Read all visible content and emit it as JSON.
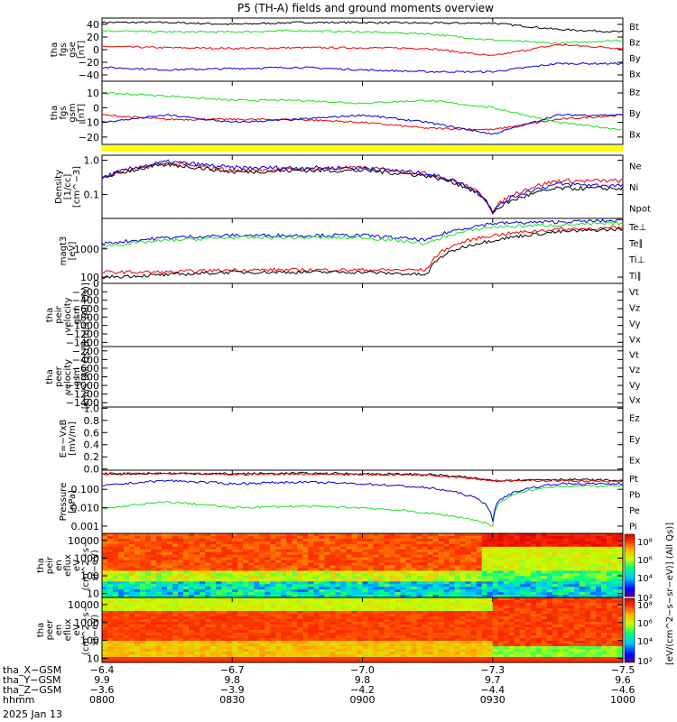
{
  "title": "P5 (TH-A) fields and ground moments overview",
  "colors": {
    "black": "#000000",
    "red": "#ee0000",
    "green": "#22dd22",
    "blue": "#0000dd",
    "yellow": "#ffff00"
  },
  "panels": [
    {
      "id": "fgs-gse",
      "ylabel": [
        "tha",
        "fgs",
        "gse",
        "[nT]"
      ],
      "ticks": [
        "40",
        "20",
        "0",
        "−20",
        "−40"
      ],
      "legend": [
        {
          "t": "Bt",
          "c": "black"
        },
        {
          "t": "Bz",
          "c": "red"
        },
        {
          "t": "By",
          "c": "green"
        },
        {
          "t": "Bx",
          "c": "blue"
        }
      ]
    },
    {
      "id": "fgs-gsm",
      "ylabel": [
        "tha",
        "fgs",
        "gsm",
        "[nT]"
      ],
      "ticks": [
        "10",
        "0",
        "−10",
        "−20"
      ],
      "legend": [
        {
          "t": "Bz",
          "c": "red"
        },
        {
          "t": "By",
          "c": "green"
        },
        {
          "t": "Bx",
          "c": "blue"
        }
      ]
    },
    {
      "id": "density",
      "ylabel": [
        "Density",
        "[1/cc]",
        "[cm^−3]"
      ],
      "ticks": [
        "1.0",
        "0.1"
      ],
      "legend": [
        {
          "t": "Ne",
          "c": "red"
        },
        {
          "t": "Ni",
          "c": "black"
        },
        {
          "t": "Npot",
          "c": "blue"
        }
      ]
    },
    {
      "id": "temp",
      "ylabel": [
        "magt3",
        "[eV]"
      ],
      "ticks": [
        "1000",
        "100"
      ],
      "legend": [
        {
          "t": "Te⊥",
          "c": "red"
        },
        {
          "t": "Te∥",
          "c": "black"
        },
        {
          "t": "Ti⊥",
          "c": "blue"
        },
        {
          "t": "Ti∥",
          "c": "green"
        }
      ]
    },
    {
      "id": "peir-vel",
      "ylabel": [
        "tha",
        "peir",
        "velocity",
        "gsm",
        "[km/s (All Qs)]"
      ],
      "ticks": [
        "0",
        "−200",
        "−400",
        "−600",
        "−800",
        "−1000",
        "−1200",
        "−1400"
      ],
      "legend": [
        {
          "t": "Vt",
          "c": "black"
        },
        {
          "t": "Vz",
          "c": "red"
        },
        {
          "t": "Vy",
          "c": "green"
        },
        {
          "t": "Vx",
          "c": "blue"
        }
      ]
    },
    {
      "id": "peer-vel",
      "ylabel": [
        "tha",
        "peer",
        "velocity",
        "gsm",
        "[km/s (All Qs)]"
      ],
      "ticks": [
        "−200",
        "−400",
        "−600",
        "−800",
        "−1000",
        "−1200",
        "−1400"
      ],
      "legend": [
        {
          "t": "Vt",
          "c": "black"
        },
        {
          "t": "Vz",
          "c": "red"
        },
        {
          "t": "Vy",
          "c": "green"
        },
        {
          "t": "Vx",
          "c": "blue"
        }
      ]
    },
    {
      "id": "efield",
      "ylabel": [
        "E=−VxB",
        "[mV/m]"
      ],
      "ticks": [
        "1.0",
        "0.8",
        "0.6",
        "0.4",
        "0.2",
        "0.0"
      ],
      "legend": [
        {
          "t": "Ez",
          "c": "red"
        },
        {
          "t": "Ey",
          "c": "green"
        },
        {
          "t": "Ex",
          "c": "blue"
        }
      ]
    },
    {
      "id": "pressure",
      "ylabel": [
        "Pressure",
        "[nPa]"
      ],
      "ticks": [
        "0.100",
        "0.010",
        "0.001"
      ],
      "legend": [
        {
          "t": "Pt",
          "c": "black"
        },
        {
          "t": "Pb",
          "c": "red"
        },
        {
          "t": "Pe",
          "c": "green"
        },
        {
          "t": "Pi",
          "c": "blue"
        }
      ]
    },
    {
      "id": "peir-spec",
      "ylabel": [
        "tha",
        "peir",
        "en",
        "eflux",
        "eV",
        "(cm^2−s−",
        "sr−eV)"
      ],
      "ticks": [
        "10000",
        "1000",
        "100",
        "10"
      ]
    },
    {
      "id": "peer-spec",
      "ylabel": [
        "tha",
        "peer",
        "en",
        "eflux",
        "eV",
        "(cm^2−s−",
        "sr−eV)"
      ],
      "ticks": [
        "10000",
        "1000",
        "100",
        "10"
      ]
    }
  ],
  "colorbar": {
    "ticks": [
      "10⁸",
      "10⁶",
      "10⁴",
      "10²"
    ],
    "label": "[eV/(cm^2−s−sr−eV)] (All Qs)]"
  },
  "xaxis": {
    "rows": [
      {
        "label": "tha_X−GSM",
        "values": [
          "−6.4",
          "−6.7",
          "−7.0",
          "−7.3",
          "−7.5"
        ]
      },
      {
        "label": "tha_Y−GSM",
        "values": [
          "9.9",
          "9.8",
          "9.8",
          "9.7",
          "9.6"
        ]
      },
      {
        "label": "tha_Z−GSM",
        "values": [
          "−3.6",
          "−3.9",
          "−4.2",
          "−4.4",
          "−4.6"
        ]
      },
      {
        "label": "hhmm",
        "values": [
          "0800",
          "0830",
          "0900",
          "0930",
          "1000"
        ]
      }
    ],
    "date": "2025 Jan 13"
  },
  "chart_data": {
    "type": "line",
    "title": "P5 (TH-A) fields and ground moments overview",
    "x": [
      "0800",
      "0815",
      "0830",
      "0845",
      "0900",
      "0915",
      "0930",
      "0945",
      "1000"
    ],
    "series": [
      {
        "panel": "fgs-gse",
        "name": "Bt",
        "color": "black",
        "values": [
          43,
          43,
          40,
          43,
          43,
          42,
          42,
          32,
          28
        ]
      },
      {
        "panel": "fgs-gse",
        "name": "Bz",
        "color": "red",
        "values": [
          5,
          3,
          2,
          3,
          3,
          2,
          -10,
          8,
          2
        ]
      },
      {
        "panel": "fgs-gse",
        "name": "By",
        "color": "green",
        "values": [
          30,
          28,
          28,
          30,
          28,
          25,
          15,
          10,
          15
        ]
      },
      {
        "panel": "fgs-gse",
        "name": "Bx",
        "color": "blue",
        "values": [
          -28,
          -32,
          -30,
          -28,
          -32,
          -35,
          -35,
          -22,
          -22
        ]
      },
      {
        "panel": "fgs-gsm",
        "name": "Bz",
        "color": "red",
        "values": [
          -5,
          -8,
          -8,
          -8,
          -10,
          -14,
          -15,
          -8,
          -5
        ]
      },
      {
        "panel": "fgs-gsm",
        "name": "By",
        "color": "green",
        "values": [
          10,
          8,
          5,
          5,
          3,
          5,
          0,
          -10,
          -15
        ]
      },
      {
        "panel": "fgs-gsm",
        "name": "Bx",
        "color": "blue",
        "values": [
          -10,
          -5,
          -10,
          -8,
          -5,
          -10,
          -18,
          -5,
          -5
        ]
      },
      {
        "panel": "density",
        "name": "Ne",
        "color": "red",
        "values": [
          0.3,
          0.8,
          0.5,
          0.55,
          0.6,
          0.4,
          0.03,
          0.25,
          0.25
        ]
      },
      {
        "panel": "density",
        "name": "Ni",
        "color": "black",
        "values": [
          0.3,
          0.75,
          0.45,
          0.5,
          0.5,
          0.35,
          0.03,
          0.15,
          0.15
        ]
      },
      {
        "panel": "density",
        "name": "Npot",
        "color": "blue",
        "values": [
          0.3,
          0.9,
          0.6,
          0.6,
          0.6,
          0.4,
          0.03,
          0.2,
          0.18
        ]
      },
      {
        "panel": "temp",
        "name": "Te⊥",
        "color": "red",
        "values": [
          150,
          150,
          180,
          180,
          180,
          180,
          3000,
          5000,
          5500
        ]
      },
      {
        "panel": "temp",
        "name": "Te∥",
        "color": "black",
        "values": [
          100,
          120,
          150,
          150,
          150,
          120,
          2000,
          4000,
          5000
        ]
      },
      {
        "panel": "temp",
        "name": "Ti⊥",
        "color": "blue",
        "values": [
          1500,
          2500,
          3000,
          3000,
          3000,
          2000,
          8000,
          9000,
          10000
        ]
      },
      {
        "panel": "temp",
        "name": "Ti∥",
        "color": "green",
        "values": [
          1200,
          2000,
          2500,
          2500,
          2500,
          1500,
          6000,
          7000,
          8000
        ]
      },
      {
        "panel": "pressure",
        "name": "Pt",
        "color": "black",
        "values": [
          0.7,
          0.75,
          0.7,
          0.75,
          0.7,
          0.65,
          0.3,
          0.35,
          0.3
        ]
      },
      {
        "panel": "pressure",
        "name": "Pb",
        "color": "red",
        "values": [
          0.7,
          0.7,
          0.65,
          0.7,
          0.65,
          0.6,
          0.3,
          0.3,
          0.25
        ]
      },
      {
        "panel": "pressure",
        "name": "Pe",
        "color": "green",
        "values": [
          0.008,
          0.02,
          0.01,
          0.012,
          0.01,
          0.005,
          0.001,
          0.15,
          0.15
        ]
      },
      {
        "panel": "pressure",
        "name": "Pi",
        "color": "blue",
        "values": [
          0.15,
          0.3,
          0.2,
          0.25,
          0.2,
          0.12,
          0.002,
          0.2,
          0.2
        ]
      }
    ]
  }
}
